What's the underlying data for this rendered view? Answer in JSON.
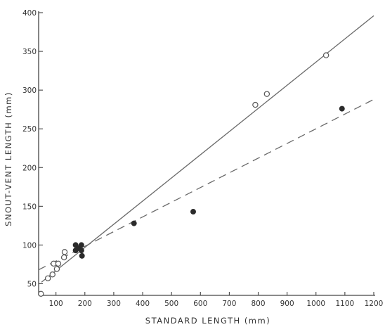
{
  "chart_data": {
    "type": "scatter",
    "title": "",
    "xlabel": "STANDARD LENGTH (mm)",
    "ylabel": "SNOUT-VENT LENGTH (mm)",
    "xlim": [
      40,
      1200
    ],
    "ylim": [
      35,
      400
    ],
    "x_ticks": [
      100,
      200,
      300,
      400,
      500,
      600,
      700,
      800,
      900,
      1000,
      1100,
      1200
    ],
    "x_tick_labels": [
      "100",
      "200",
      "300",
      "400",
      "500",
      "600",
      "700",
      "800",
      "900",
      "1000",
      "1100",
      "1200"
    ],
    "y_ticks": [
      50,
      100,
      150,
      200,
      250,
      300,
      350,
      400
    ],
    "y_tick_labels": [
      "50",
      "100",
      "150",
      "200",
      "250",
      "300",
      "350",
      "400"
    ],
    "grid": false,
    "series": [
      {
        "marker": "open-circle",
        "points": [
          {
            "x": 48,
            "y": 37
          },
          {
            "x": 72,
            "y": 57
          },
          {
            "x": 88,
            "y": 62
          },
          {
            "x": 92,
            "y": 76
          },
          {
            "x": 103,
            "y": 69
          },
          {
            "x": 108,
            "y": 76
          },
          {
            "x": 128,
            "y": 84
          },
          {
            "x": 130,
            "y": 91
          },
          {
            "x": 790,
            "y": 281
          },
          {
            "x": 830,
            "y": 295
          },
          {
            "x": 1035,
            "y": 345
          }
        ],
        "fit_line": {
          "style": "solid",
          "x": [
            50,
            1200
          ],
          "y": [
            52,
            396
          ]
        }
      },
      {
        "marker": "filled-circle",
        "points": [
          {
            "x": 168,
            "y": 93
          },
          {
            "x": 168,
            "y": 100
          },
          {
            "x": 178,
            "y": 96
          },
          {
            "x": 188,
            "y": 100
          },
          {
            "x": 188,
            "y": 93
          },
          {
            "x": 190,
            "y": 86
          },
          {
            "x": 370,
            "y": 128
          },
          {
            "x": 575,
            "y": 143
          },
          {
            "x": 1090,
            "y": 276
          }
        ],
        "fit_line": {
          "style": "dashed",
          "x": [
            40,
            1200
          ],
          "y": [
            68,
            288
          ]
        }
      }
    ]
  }
}
